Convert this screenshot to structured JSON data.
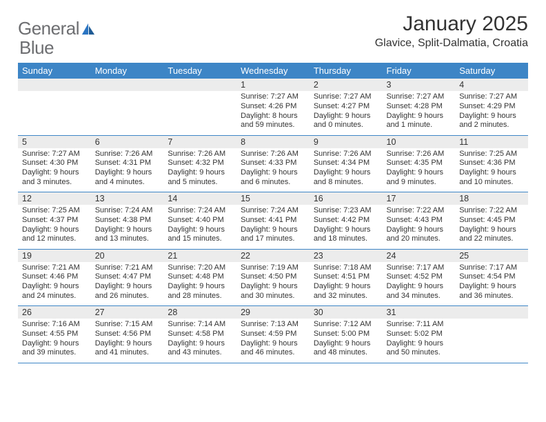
{
  "logo": {
    "word1": "General",
    "word2": "Blue"
  },
  "title": "January 2025",
  "location": "Glavice, Split-Dalmatia, Croatia",
  "colors": {
    "header_bg": "#3d85c6",
    "header_fg": "#ffffff",
    "daynum_bg": "#ececec",
    "rule": "#3d85c6",
    "text": "#333333",
    "logo_gray": "#6d6e71",
    "logo_blue": "#2a74c2"
  },
  "typography": {
    "title_fontsize": 30,
    "location_fontsize": 16,
    "dayheader_fontsize": 13,
    "daynum_fontsize": 12.5,
    "cell_fontsize": 11
  },
  "day_headers": [
    "Sunday",
    "Monday",
    "Tuesday",
    "Wednesday",
    "Thursday",
    "Friday",
    "Saturday"
  ],
  "weeks": [
    [
      null,
      null,
      null,
      {
        "n": "1",
        "sunrise": "7:27 AM",
        "sunset": "4:26 PM",
        "daylight": "8 hours and 59 minutes."
      },
      {
        "n": "2",
        "sunrise": "7:27 AM",
        "sunset": "4:27 PM",
        "daylight": "9 hours and 0 minutes."
      },
      {
        "n": "3",
        "sunrise": "7:27 AM",
        "sunset": "4:28 PM",
        "daylight": "9 hours and 1 minute."
      },
      {
        "n": "4",
        "sunrise": "7:27 AM",
        "sunset": "4:29 PM",
        "daylight": "9 hours and 2 minutes."
      }
    ],
    [
      {
        "n": "5",
        "sunrise": "7:27 AM",
        "sunset": "4:30 PM",
        "daylight": "9 hours and 3 minutes."
      },
      {
        "n": "6",
        "sunrise": "7:26 AM",
        "sunset": "4:31 PM",
        "daylight": "9 hours and 4 minutes."
      },
      {
        "n": "7",
        "sunrise": "7:26 AM",
        "sunset": "4:32 PM",
        "daylight": "9 hours and 5 minutes."
      },
      {
        "n": "8",
        "sunrise": "7:26 AM",
        "sunset": "4:33 PM",
        "daylight": "9 hours and 6 minutes."
      },
      {
        "n": "9",
        "sunrise": "7:26 AM",
        "sunset": "4:34 PM",
        "daylight": "9 hours and 8 minutes."
      },
      {
        "n": "10",
        "sunrise": "7:26 AM",
        "sunset": "4:35 PM",
        "daylight": "9 hours and 9 minutes."
      },
      {
        "n": "11",
        "sunrise": "7:25 AM",
        "sunset": "4:36 PM",
        "daylight": "9 hours and 10 minutes."
      }
    ],
    [
      {
        "n": "12",
        "sunrise": "7:25 AM",
        "sunset": "4:37 PM",
        "daylight": "9 hours and 12 minutes."
      },
      {
        "n": "13",
        "sunrise": "7:24 AM",
        "sunset": "4:38 PM",
        "daylight": "9 hours and 13 minutes."
      },
      {
        "n": "14",
        "sunrise": "7:24 AM",
        "sunset": "4:40 PM",
        "daylight": "9 hours and 15 minutes."
      },
      {
        "n": "15",
        "sunrise": "7:24 AM",
        "sunset": "4:41 PM",
        "daylight": "9 hours and 17 minutes."
      },
      {
        "n": "16",
        "sunrise": "7:23 AM",
        "sunset": "4:42 PM",
        "daylight": "9 hours and 18 minutes."
      },
      {
        "n": "17",
        "sunrise": "7:22 AM",
        "sunset": "4:43 PM",
        "daylight": "9 hours and 20 minutes."
      },
      {
        "n": "18",
        "sunrise": "7:22 AM",
        "sunset": "4:45 PM",
        "daylight": "9 hours and 22 minutes."
      }
    ],
    [
      {
        "n": "19",
        "sunrise": "7:21 AM",
        "sunset": "4:46 PM",
        "daylight": "9 hours and 24 minutes."
      },
      {
        "n": "20",
        "sunrise": "7:21 AM",
        "sunset": "4:47 PM",
        "daylight": "9 hours and 26 minutes."
      },
      {
        "n": "21",
        "sunrise": "7:20 AM",
        "sunset": "4:48 PM",
        "daylight": "9 hours and 28 minutes."
      },
      {
        "n": "22",
        "sunrise": "7:19 AM",
        "sunset": "4:50 PM",
        "daylight": "9 hours and 30 minutes."
      },
      {
        "n": "23",
        "sunrise": "7:18 AM",
        "sunset": "4:51 PM",
        "daylight": "9 hours and 32 minutes."
      },
      {
        "n": "24",
        "sunrise": "7:17 AM",
        "sunset": "4:52 PM",
        "daylight": "9 hours and 34 minutes."
      },
      {
        "n": "25",
        "sunrise": "7:17 AM",
        "sunset": "4:54 PM",
        "daylight": "9 hours and 36 minutes."
      }
    ],
    [
      {
        "n": "26",
        "sunrise": "7:16 AM",
        "sunset": "4:55 PM",
        "daylight": "9 hours and 39 minutes."
      },
      {
        "n": "27",
        "sunrise": "7:15 AM",
        "sunset": "4:56 PM",
        "daylight": "9 hours and 41 minutes."
      },
      {
        "n": "28",
        "sunrise": "7:14 AM",
        "sunset": "4:58 PM",
        "daylight": "9 hours and 43 minutes."
      },
      {
        "n": "29",
        "sunrise": "7:13 AM",
        "sunset": "4:59 PM",
        "daylight": "9 hours and 46 minutes."
      },
      {
        "n": "30",
        "sunrise": "7:12 AM",
        "sunset": "5:00 PM",
        "daylight": "9 hours and 48 minutes."
      },
      {
        "n": "31",
        "sunrise": "7:11 AM",
        "sunset": "5:02 PM",
        "daylight": "9 hours and 50 minutes."
      },
      null
    ]
  ],
  "labels": {
    "sunrise": "Sunrise: ",
    "sunset": "Sunset: ",
    "daylight": "Daylight: "
  }
}
